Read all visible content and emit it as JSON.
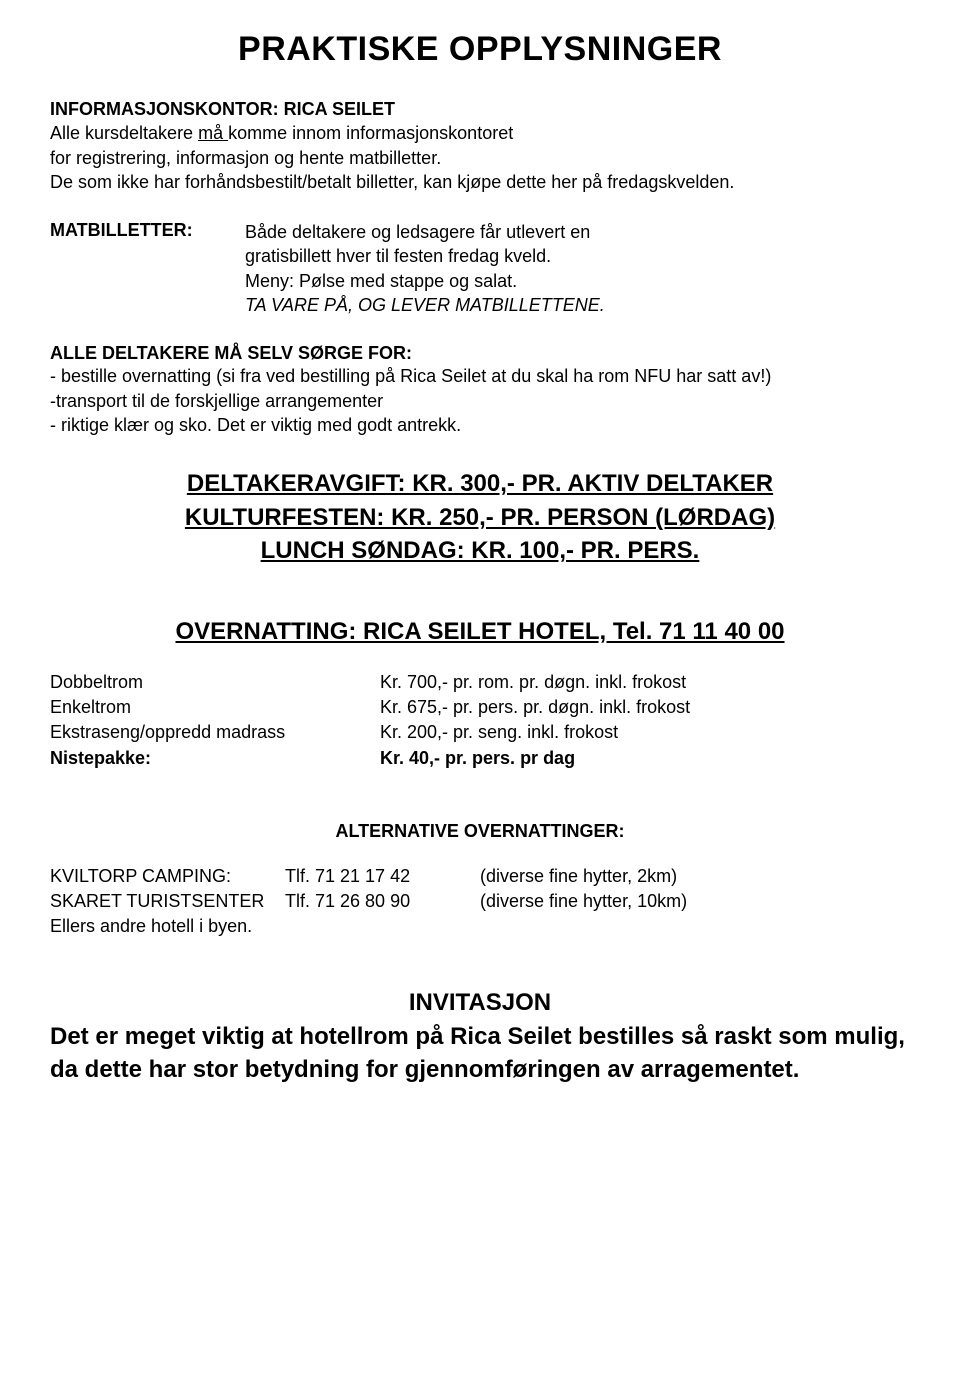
{
  "title": "PRAKTISKE OPPLYSNINGER",
  "intro": {
    "heading": "INFORMASJONSKONTOR: RICA SEILET",
    "line1_a": "Alle kursdeltakere ",
    "line1_underline": "må ",
    "line1_b": "komme innom informasjonskontoret",
    "line2": "for registrering, informasjon og hente matbilletter.",
    "line3": "De som ikke har forhåndsbestilt/betalt billetter, kan kjøpe dette her på fredagskvelden."
  },
  "matbilletter": {
    "label": "MATBILLETTER:",
    "line1": "Både deltakere og ledsagere får utlevert en",
    "line2": "gratisbillett hver til festen fredag kveld.",
    "line3": "Meny: Pølse med stappe og salat.",
    "line4": "TA VARE PÅ, OG LEVER MATBILLETTENE."
  },
  "alle_deltakere": {
    "heading": "ALLE DELTAKERE MÅ SELV SØRGE FOR:",
    "item1": "- bestille overnatting (si fra ved bestilling på Rica Seilet at du skal ha rom NFU har satt av!)",
    "item2": "-transport til de forskjellige arrangementer",
    "item3": "- riktige klær og sko.  Det er viktig med godt antrekk."
  },
  "pricing": {
    "line1": "DELTAKERAVGIFT: KR. 300,- PR. AKTIV DELTAKER",
    "line2": " KULTURFESTEN: KR. 250,- PR. PERSON (LØRDAG)",
    "line3": "LUNCH SØNDAG: KR. 100,- PR. PERS."
  },
  "overnatting": {
    "heading": "OVERNATTING: RICA SEILET HOTEL, Tel. 71 11 40 00",
    "rooms": [
      {
        "label": "Dobbeltrom",
        "price": "Kr. 700,- pr. rom. pr. døgn. inkl. frokost",
        "bold": false
      },
      {
        "label": "Enkeltrom",
        "price": "Kr. 675,- pr. pers. pr. døgn. inkl. frokost",
        "bold": false
      },
      {
        "label": "Ekstraseng/oppredd madrass",
        "price": "Kr. 200,- pr. seng. inkl. frokost",
        "bold": false
      },
      {
        "label": "Nistepakke:",
        "price": "Kr.  40,- pr. pers. pr dag",
        "bold": true
      }
    ]
  },
  "alternative": {
    "heading": "ALTERNATIVE OVERNATTINGER:",
    "rows": [
      {
        "label": "KVILTORP CAMPING:",
        "phone": "Tlf. 71 21 17 42",
        "desc": "(diverse fine hytter, 2km)"
      },
      {
        "label": "SKARET TURISTSENTER",
        "phone": "Tlf. 71 26 80 90",
        "desc": "(diverse fine hytter, 10km)"
      }
    ],
    "footer": "Ellers andre hotell i byen."
  },
  "invitasjon": {
    "heading": "INVITASJON",
    "text": "Det er meget viktig at hotellrom på Rica Seilet bestilles så raskt som mulig, da dette har stor betydning for gjennomføringen av arragementet."
  },
  "styling": {
    "background_color": "#ffffff",
    "text_color": "#000000",
    "title_fontsize": 34,
    "heading_fontsize": 18,
    "body_fontsize": 18,
    "pricing_fontsize": 24,
    "invitasjon_fontsize": 24
  }
}
